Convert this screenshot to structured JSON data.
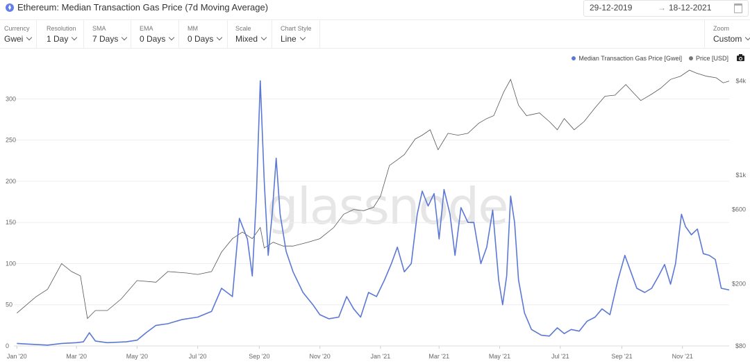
{
  "header": {
    "title": "Ethereum: Median Transaction Gas Price (7d Moving Average)",
    "date_from": "29-12-2019",
    "date_arrow": "→",
    "date_to": "18-12-2021"
  },
  "controls": [
    {
      "label": "Currency",
      "value": "Gwei"
    },
    {
      "label": "Resolution",
      "value": "1 Day"
    },
    {
      "label": "SMA",
      "value": "7 Days"
    },
    {
      "label": "EMA",
      "value": "0 Days"
    },
    {
      "label": "MM",
      "value": "0 Days"
    },
    {
      "label": "Scale",
      "value": "Mixed"
    },
    {
      "label": "Chart Style",
      "value": "Line"
    }
  ],
  "zoom": {
    "label": "Zoom",
    "value": "Custom"
  },
  "watermark": "glassnode",
  "colors": {
    "gas": "#5b78d4",
    "price": "#555555",
    "grid": "#eeeeee"
  },
  "icons": {
    "asset": "ethereum-icon",
    "calendar": "calendar-icon",
    "screenshot": "camera-icon"
  },
  "chart_data": {
    "type": "line",
    "x_start": "2019-12-29",
    "x_end": "2021-12-18",
    "x_ticks": [
      "Jan '20",
      "Mar '20",
      "May '20",
      "Jul '20",
      "Sep '20",
      "Nov '20",
      "Jan '21",
      "Mar '21",
      "May '21",
      "Jul '21",
      "Sep '21",
      "Nov '21"
    ],
    "y_left": {
      "ticks": [
        0,
        50,
        100,
        150,
        200,
        250,
        300
      ],
      "ylim": [
        0,
        340
      ],
      "scale": "linear"
    },
    "y_right": {
      "ticks": [
        80,
        200,
        600,
        1000,
        4000
      ],
      "tick_labels": [
        "$80",
        "$200",
        "$600",
        "$1k",
        "$4k"
      ],
      "scale": "log",
      "ylim": [
        80,
        5000
      ]
    },
    "grid": true,
    "legend_position": "top-right",
    "series": [
      {
        "name": "Median Transaction Gas Price [Gwei]",
        "axis": "left",
        "points": [
          [
            "2020-01-01",
            3
          ],
          [
            "2020-01-15",
            2
          ],
          [
            "2020-02-01",
            1
          ],
          [
            "2020-02-15",
            3
          ],
          [
            "2020-03-01",
            4
          ],
          [
            "2020-03-08",
            5
          ],
          [
            "2020-03-14",
            16
          ],
          [
            "2020-03-20",
            6
          ],
          [
            "2020-04-01",
            4
          ],
          [
            "2020-04-20",
            5
          ],
          [
            "2020-05-01",
            7
          ],
          [
            "2020-05-10",
            16
          ],
          [
            "2020-05-20",
            25
          ],
          [
            "2020-06-01",
            27
          ],
          [
            "2020-06-15",
            32
          ],
          [
            "2020-07-01",
            35
          ],
          [
            "2020-07-15",
            42
          ],
          [
            "2020-07-25",
            70
          ],
          [
            "2020-08-05",
            60
          ],
          [
            "2020-08-12",
            155
          ],
          [
            "2020-08-20",
            130
          ],
          [
            "2020-08-25",
            85
          ],
          [
            "2020-08-29",
            180
          ],
          [
            "2020-09-02",
            322
          ],
          [
            "2020-09-06",
            200
          ],
          [
            "2020-09-10",
            110
          ],
          [
            "2020-09-14",
            160
          ],
          [
            "2020-09-18",
            228
          ],
          [
            "2020-09-22",
            160
          ],
          [
            "2020-09-28",
            115
          ],
          [
            "2020-10-05",
            90
          ],
          [
            "2020-10-15",
            65
          ],
          [
            "2020-10-25",
            50
          ],
          [
            "2020-11-01",
            38
          ],
          [
            "2020-11-10",
            33
          ],
          [
            "2020-11-20",
            35
          ],
          [
            "2020-11-28",
            60
          ],
          [
            "2020-12-05",
            45
          ],
          [
            "2020-12-12",
            35
          ],
          [
            "2020-12-20",
            65
          ],
          [
            "2020-12-28",
            60
          ],
          [
            "2021-01-05",
            80
          ],
          [
            "2021-01-12",
            100
          ],
          [
            "2021-01-18",
            120
          ],
          [
            "2021-01-25",
            90
          ],
          [
            "2021-02-01",
            100
          ],
          [
            "2021-02-07",
            160
          ],
          [
            "2021-02-12",
            188
          ],
          [
            "2021-02-18",
            170
          ],
          [
            "2021-02-24",
            185
          ],
          [
            "2021-03-01",
            130
          ],
          [
            "2021-03-06",
            190
          ],
          [
            "2021-03-12",
            160
          ],
          [
            "2021-03-17",
            110
          ],
          [
            "2021-03-23",
            168
          ],
          [
            "2021-03-30",
            150
          ],
          [
            "2021-04-05",
            150
          ],
          [
            "2021-04-12",
            100
          ],
          [
            "2021-04-18",
            120
          ],
          [
            "2021-04-24",
            165
          ],
          [
            "2021-04-30",
            80
          ],
          [
            "2021-05-04",
            50
          ],
          [
            "2021-05-08",
            85
          ],
          [
            "2021-05-12",
            182
          ],
          [
            "2021-05-16",
            150
          ],
          [
            "2021-05-20",
            80
          ],
          [
            "2021-05-26",
            40
          ],
          [
            "2021-06-02",
            20
          ],
          [
            "2021-06-12",
            13
          ],
          [
            "2021-06-20",
            12
          ],
          [
            "2021-06-28",
            22
          ],
          [
            "2021-07-05",
            15
          ],
          [
            "2021-07-12",
            20
          ],
          [
            "2021-07-20",
            18
          ],
          [
            "2021-07-28",
            30
          ],
          [
            "2021-08-05",
            35
          ],
          [
            "2021-08-12",
            45
          ],
          [
            "2021-08-20",
            38
          ],
          [
            "2021-08-28",
            80
          ],
          [
            "2021-09-04",
            110
          ],
          [
            "2021-09-10",
            90
          ],
          [
            "2021-09-16",
            70
          ],
          [
            "2021-09-24",
            65
          ],
          [
            "2021-10-01",
            70
          ],
          [
            "2021-10-08",
            85
          ],
          [
            "2021-10-14",
            99
          ],
          [
            "2021-10-20",
            75
          ],
          [
            "2021-10-25",
            100
          ],
          [
            "2021-10-31",
            160
          ],
          [
            "2021-11-04",
            145
          ],
          [
            "2021-11-10",
            135
          ],
          [
            "2021-11-16",
            142
          ],
          [
            "2021-11-22",
            112
          ],
          [
            "2021-11-28",
            110
          ],
          [
            "2021-12-04",
            105
          ],
          [
            "2021-12-10",
            70
          ],
          [
            "2021-12-18",
            68
          ]
        ]
      },
      {
        "name": "Price [USD]",
        "axis": "right",
        "points": [
          [
            "2020-01-01",
            130
          ],
          [
            "2020-01-20",
            165
          ],
          [
            "2020-02-01",
            185
          ],
          [
            "2020-02-15",
            270
          ],
          [
            "2020-02-25",
            240
          ],
          [
            "2020-03-05",
            225
          ],
          [
            "2020-03-12",
            120
          ],
          [
            "2020-03-20",
            135
          ],
          [
            "2020-04-01",
            135
          ],
          [
            "2020-04-15",
            160
          ],
          [
            "2020-05-01",
            210
          ],
          [
            "2020-05-20",
            205
          ],
          [
            "2020-06-01",
            240
          ],
          [
            "2020-06-20",
            235
          ],
          [
            "2020-07-01",
            230
          ],
          [
            "2020-07-15",
            240
          ],
          [
            "2020-07-25",
            320
          ],
          [
            "2020-08-05",
            390
          ],
          [
            "2020-08-15",
            430
          ],
          [
            "2020-08-25",
            390
          ],
          [
            "2020-09-02",
            460
          ],
          [
            "2020-09-06",
            340
          ],
          [
            "2020-09-15",
            370
          ],
          [
            "2020-09-25",
            350
          ],
          [
            "2020-10-05",
            350
          ],
          [
            "2020-10-20",
            370
          ],
          [
            "2020-11-01",
            390
          ],
          [
            "2020-11-15",
            460
          ],
          [
            "2020-11-25",
            560
          ],
          [
            "2020-12-05",
            600
          ],
          [
            "2020-12-15",
            590
          ],
          [
            "2020-12-25",
            620
          ],
          [
            "2021-01-01",
            730
          ],
          [
            "2021-01-10",
            1150
          ],
          [
            "2021-01-18",
            1250
          ],
          [
            "2021-01-25",
            1350
          ],
          [
            "2021-02-05",
            1700
          ],
          [
            "2021-02-12",
            1800
          ],
          [
            "2021-02-20",
            1950
          ],
          [
            "2021-02-28",
            1450
          ],
          [
            "2021-03-10",
            1850
          ],
          [
            "2021-03-20",
            1800
          ],
          [
            "2021-03-30",
            1850
          ],
          [
            "2021-04-10",
            2150
          ],
          [
            "2021-04-18",
            2300
          ],
          [
            "2021-04-25",
            2400
          ],
          [
            "2021-05-05",
            3400
          ],
          [
            "2021-05-12",
            4100
          ],
          [
            "2021-05-20",
            2800
          ],
          [
            "2021-05-28",
            2400
          ],
          [
            "2021-06-10",
            2500
          ],
          [
            "2021-06-20",
            2200
          ],
          [
            "2021-06-28",
            1950
          ],
          [
            "2021-07-05",
            2300
          ],
          [
            "2021-07-15",
            1950
          ],
          [
            "2021-07-25",
            2200
          ],
          [
            "2021-08-05",
            2700
          ],
          [
            "2021-08-15",
            3200
          ],
          [
            "2021-08-25",
            3250
          ],
          [
            "2021-09-05",
            3800
          ],
          [
            "2021-09-12",
            3400
          ],
          [
            "2021-09-20",
            3000
          ],
          [
            "2021-10-01",
            3300
          ],
          [
            "2021-10-10",
            3600
          ],
          [
            "2021-10-20",
            4100
          ],
          [
            "2021-10-30",
            4300
          ],
          [
            "2021-11-08",
            4700
          ],
          [
            "2021-11-15",
            4500
          ],
          [
            "2021-11-25",
            4300
          ],
          [
            "2021-12-05",
            4200
          ],
          [
            "2021-12-12",
            3900
          ],
          [
            "2021-12-18",
            4000
          ]
        ]
      }
    ]
  }
}
